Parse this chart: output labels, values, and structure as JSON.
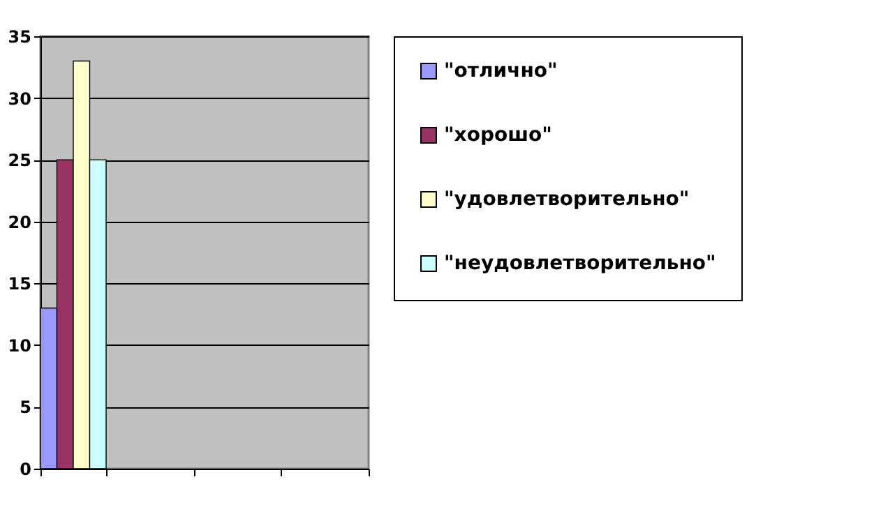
{
  "chart_data": {
    "type": "bar",
    "categories": [
      null,
      null,
      null,
      null
    ],
    "series": [
      {
        "name": "\"отлично\"",
        "color": "#9999ff",
        "values": [
          13,
          null,
          null,
          null
        ]
      },
      {
        "name": "\"хорошо\"",
        "color": "#993366",
        "values": [
          25,
          null,
          null,
          null
        ]
      },
      {
        "name": "\"удовлетворительно\"",
        "color": "#ffffcc",
        "values": [
          33,
          null,
          null,
          null
        ]
      },
      {
        "name": "\"неудовлетворительно\"",
        "color": "#ccffff",
        "values": [
          25,
          null,
          null,
          null
        ]
      }
    ],
    "ylim": [
      0,
      35
    ],
    "yticks": [
      0,
      5,
      10,
      15,
      20,
      25,
      30,
      35
    ],
    "grid": "y",
    "legend": "right",
    "tick_labels": "y"
  }
}
